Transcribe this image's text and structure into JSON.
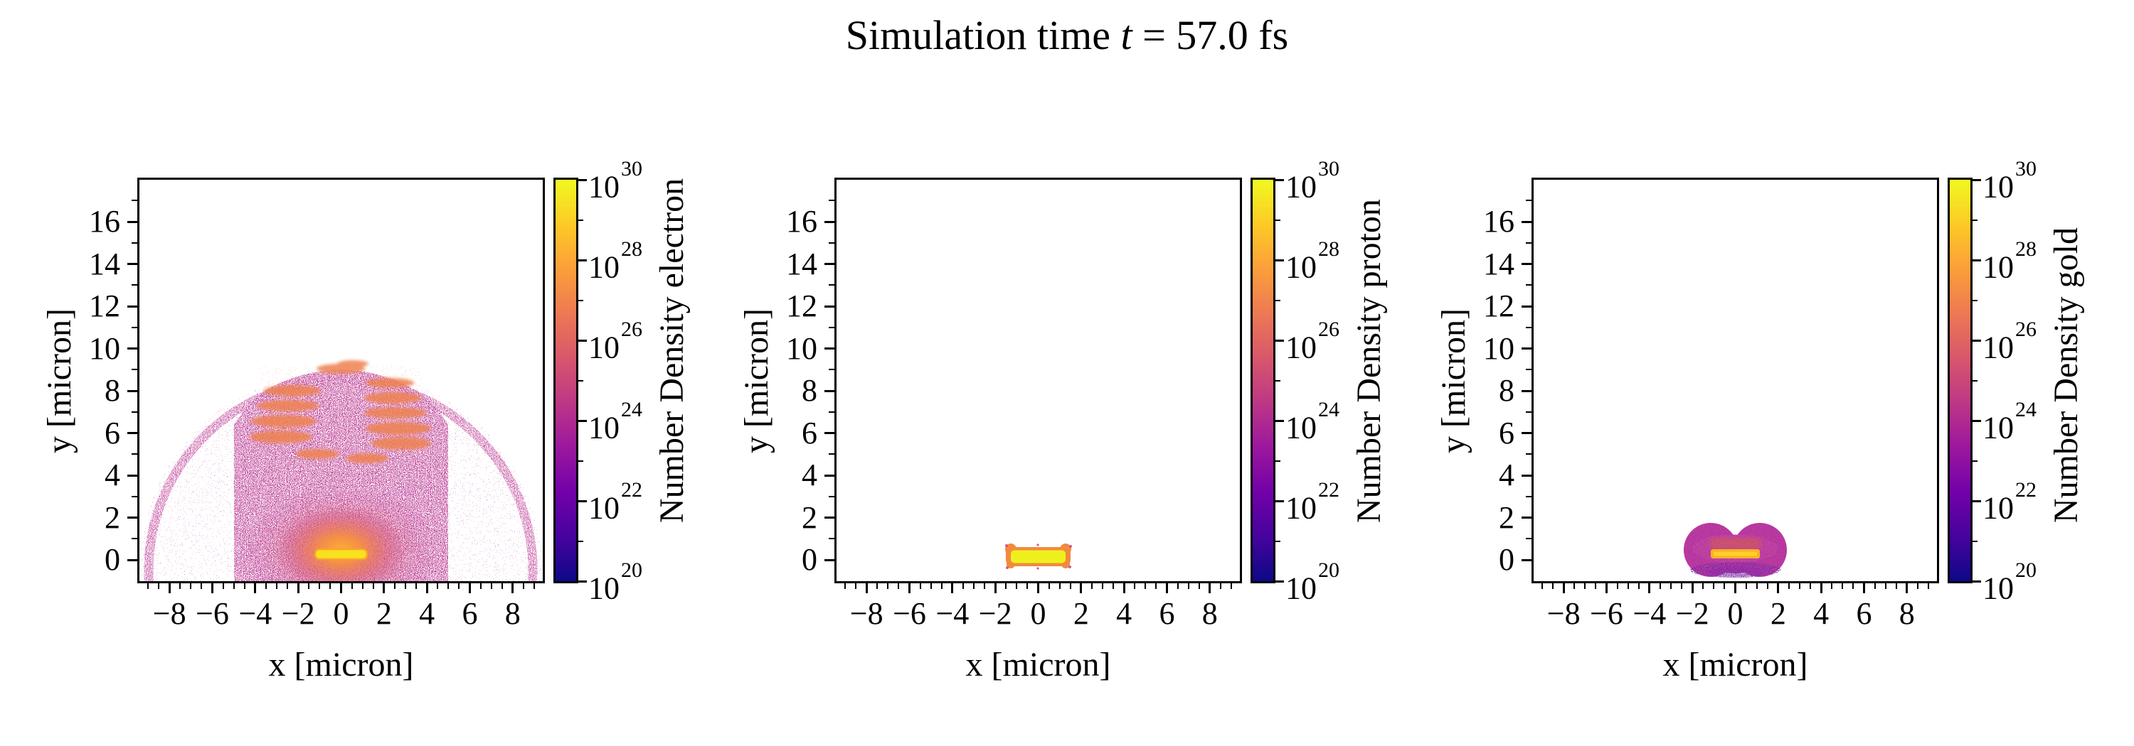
{
  "title": {
    "pre": "Simulation time ",
    "var": "t",
    "post": " = 57.0 fs",
    "full": "Simulation time t = 57.0 fs"
  },
  "colormap": {
    "name": "plasma",
    "stops": [
      "#0d0887",
      "#46039f",
      "#7201a8",
      "#9c179e",
      "#bd3786",
      "#d8576b",
      "#ed7953",
      "#fb9f3a",
      "#fdca26",
      "#f0f921"
    ],
    "accent_bar_yellow": "#f8e11f",
    "glow_orange": "#f58f42",
    "speckle_magenta": "#b02d92",
    "speckle_purple": "#7c17a2",
    "gold_blob_magenta": "#ca3c9e"
  },
  "panels": [
    {
      "key": "electron",
      "ylabel": "y [micron]",
      "xlabel": "x [micron]",
      "x_ticks": {
        "values": [
          -8,
          -6,
          -4,
          -2,
          0,
          2,
          4,
          6,
          8
        ],
        "labels": [
          "−8",
          "−6",
          "−4",
          "−2",
          "0",
          "2",
          "4",
          "6",
          "8"
        ],
        "minor_step": 0.5
      },
      "y_ticks": {
        "values": [
          0,
          2,
          4,
          6,
          8,
          10,
          12,
          14,
          16
        ],
        "labels": [
          "0",
          "2",
          "4",
          "6",
          "8",
          "10",
          "12",
          "14",
          "16"
        ],
        "minor_step": 1
      },
      "colorbar": {
        "label": "Number Density electron",
        "base": "10",
        "major_exponents": [
          20,
          22,
          24,
          26,
          28,
          30
        ],
        "minor_exponents": [
          21,
          23,
          25,
          27,
          29
        ]
      }
    },
    {
      "key": "proton",
      "ylabel": "y [micron]",
      "xlabel": "x [micron]",
      "x_ticks": {
        "values": [
          -8,
          -6,
          -4,
          -2,
          0,
          2,
          4,
          6,
          8
        ],
        "labels": [
          "−8",
          "−6",
          "−4",
          "−2",
          "0",
          "2",
          "4",
          "6",
          "8"
        ],
        "minor_step": 0.5
      },
      "y_ticks": {
        "values": [
          0,
          2,
          4,
          6,
          8,
          10,
          12,
          14,
          16
        ],
        "labels": [
          "0",
          "2",
          "4",
          "6",
          "8",
          "10",
          "12",
          "14",
          "16"
        ],
        "minor_step": 1
      },
      "colorbar": {
        "label": "Number Density proton",
        "base": "10",
        "major_exponents": [
          20,
          22,
          24,
          26,
          28,
          30
        ],
        "minor_exponents": [
          21,
          23,
          25,
          27,
          29
        ]
      }
    },
    {
      "key": "gold",
      "ylabel": "y [micron]",
      "xlabel": "x [micron]",
      "x_ticks": {
        "values": [
          -8,
          -6,
          -4,
          -2,
          0,
          2,
          4,
          6,
          8
        ],
        "labels": [
          "−8",
          "−6",
          "−4",
          "−2",
          "0",
          "2",
          "4",
          "6",
          "8"
        ],
        "minor_step": 0.5
      },
      "y_ticks": {
        "values": [
          0,
          2,
          4,
          6,
          8,
          10,
          12,
          14,
          16
        ],
        "labels": [
          "0",
          "2",
          "4",
          "6",
          "8",
          "10",
          "12",
          "14",
          "16"
        ],
        "minor_step": 1
      },
      "colorbar": {
        "label": "Number Density gold",
        "base": "10",
        "major_exponents": [
          20,
          22,
          24,
          26,
          28,
          30
        ],
        "minor_exponents": [
          21,
          23,
          25,
          27,
          29
        ]
      }
    }
  ],
  "chart_data": [
    {
      "type": "heatmap",
      "species": "electron",
      "title": "Simulation time t = 57.0 fs",
      "xlabel": "x [micron]",
      "ylabel": "y [micron]",
      "colorbar_label": "Number Density electron",
      "xlim": [
        -9.4,
        9.4
      ],
      "ylim": [
        -1,
        18
      ],
      "color_scale": "log",
      "vmin": 1e+20,
      "vmax": 1e+30,
      "colormap": "plasma",
      "features": [
        {
          "name": "target-bar",
          "shape": "rect",
          "x": [
            -1.2,
            1.2
          ],
          "y": [
            0.0,
            0.45
          ],
          "value": 1e+30,
          "color": "bright yellow"
        },
        {
          "name": "hot-glow",
          "shape": "ellipse",
          "center": [
            0,
            0.5
          ],
          "rx": 3.0,
          "ry": 2.0,
          "value": 1e+27,
          "color": "orange fading to magenta"
        },
        {
          "name": "plume-dome",
          "shape": "speckled dome",
          "x": [
            -9.3,
            9.3
          ],
          "y": [
            0,
            9.0
          ],
          "value": 1e+22,
          "color": "sparse magenta speckle"
        },
        {
          "name": "dense-column",
          "shape": "speckled column",
          "x": [
            -4.5,
            4.5
          ],
          "y": [
            0,
            8.8
          ],
          "value": 1e+23,
          "color": "dense magenta speckle"
        },
        {
          "name": "layered-arcs",
          "shape": "lens stack",
          "x": [
            -3,
            3
          ],
          "y": [
            5.5,
            9.0
          ],
          "value": 1e+26,
          "color": "orange arcs"
        }
      ]
    },
    {
      "type": "heatmap",
      "species": "proton",
      "xlabel": "x [micron]",
      "ylabel": "y [micron]",
      "colorbar_label": "Number Density proton",
      "xlim": [
        -9.4,
        9.4
      ],
      "ylim": [
        -1,
        18
      ],
      "color_scale": "log",
      "vmin": 1e+20,
      "vmax": 1e+30,
      "colormap": "plasma",
      "features": [
        {
          "name": "target-bar",
          "shape": "bone/rect with corner knobs",
          "x": [
            -1.5,
            1.5
          ],
          "y": [
            -0.3,
            0.6
          ],
          "value": 1e+29,
          "color": "yellow core with orange rim"
        }
      ]
    },
    {
      "type": "heatmap",
      "species": "gold",
      "xlabel": "x [micron]",
      "ylabel": "y [micron]",
      "colorbar_label": "Number Density gold",
      "xlim": [
        -9.4,
        9.4
      ],
      "ylim": [
        -1,
        18
      ],
      "color_scale": "log",
      "vmin": 1e+20,
      "vmax": 1e+30,
      "colormap": "plasma",
      "features": [
        {
          "name": "expanded-gold-blob",
          "shape": "peanut (two lobes)",
          "x": [
            -2.4,
            2.4
          ],
          "y": [
            -1.0,
            1.75
          ],
          "lobe_centers": [
            [
              -1.15,
              0.45
            ],
            [
              1.15,
              0.45
            ]
          ],
          "value": 1e+24,
          "color": "magenta with purple speckle"
        },
        {
          "name": "target-bar",
          "shape": "rect",
          "x": [
            -1.15,
            1.15
          ],
          "y": [
            0.0,
            0.4
          ],
          "value": 1e+28,
          "color": "orange-yellow"
        }
      ]
    }
  ]
}
